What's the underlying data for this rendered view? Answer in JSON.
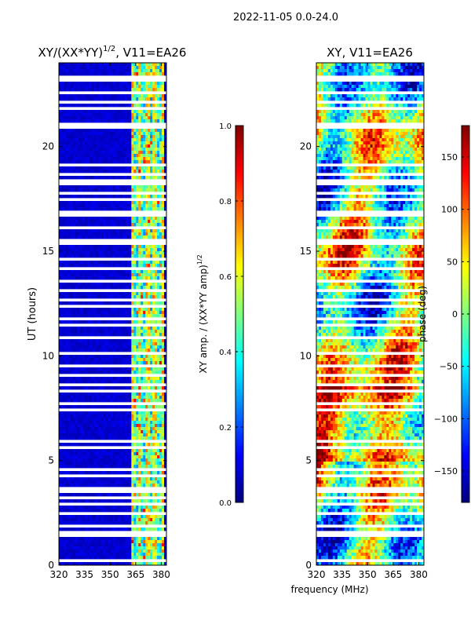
{
  "suptitle": "2022-11-05 0.0-24.0",
  "chart_data": [
    {
      "type": "heatmap",
      "title": "XY/(XX*YY)",
      "title_exp": "1/2",
      "title_tail": ", V11=EA26",
      "ylabel": "UT (hours)",
      "xlabel": "",
      "xlim": [
        320,
        383
      ],
      "ylim": [
        0,
        24
      ],
      "xticks": [
        "320",
        "335",
        "350",
        "365",
        "380"
      ],
      "xtick_values": [
        320,
        335,
        350,
        365,
        380
      ],
      "yticks": [
        "0",
        "5",
        "10",
        "15",
        "20"
      ],
      "ytick_values": [
        0,
        5,
        10,
        15,
        20
      ],
      "colormap": "jet",
      "colorbar": {
        "label": "XY amp. / (XX*YY amp)",
        "label_exp": "1/2",
        "range": [
          0.0,
          1.0
        ],
        "ticks": [
          "0.0",
          "0.2",
          "0.4",
          "0.6",
          "0.8",
          "1.0"
        ],
        "tick_values": [
          0.0,
          0.2,
          0.4,
          0.6,
          0.8,
          1.0
        ]
      },
      "flagged_hours": [
        0.3,
        0.6,
        1.4,
        1.6,
        1.9,
        2.5,
        2.9,
        3.3,
        3.5,
        3.7,
        4.2,
        4.6,
        5.6,
        5.9,
        6.9,
        7.4,
        7.8,
        8.3,
        8.6,
        9.1,
        9.6,
        10.1,
        10.9,
        11.4,
        11.8,
        12.3,
        12.7,
        13.2,
        13.6,
        14.2,
        14.6,
        15.4,
        15.6,
        16.1,
        16.8,
        17.5,
        17.8,
        18.3,
        18.7,
        19.1,
        20.9,
        21.1,
        21.9,
        22.1,
        22.6,
        23.1,
        23.3
      ],
      "bright_band_MHz": [
        362,
        381
      ]
    },
    {
      "type": "heatmap",
      "title": "XY, V11=EA26",
      "ylabel": "",
      "xlabel": "frequency (MHz)",
      "xlim": [
        320,
        383
      ],
      "ylim": [
        0,
        24
      ],
      "xticks": [
        "320",
        "335",
        "350",
        "365",
        "380"
      ],
      "xtick_values": [
        320,
        335,
        350,
        365,
        380
      ],
      "yticks": [
        "0",
        "5",
        "10",
        "15",
        "20"
      ],
      "ytick_values": [
        0,
        5,
        10,
        15,
        20
      ],
      "colormap": "jet",
      "colorbar": {
        "label": "phase (deg)",
        "range": [
          -180,
          180
        ],
        "ticks": [
          "−150",
          "−100",
          "−50",
          "0",
          "50",
          "100",
          "150"
        ],
        "tick_values": [
          -150,
          -100,
          -50,
          0,
          50,
          100,
          150
        ]
      },
      "flagged_hours": [
        0.3,
        0.6,
        1.4,
        1.6,
        1.9,
        2.5,
        2.9,
        3.3,
        3.5,
        3.7,
        4.2,
        4.6,
        5.6,
        5.9,
        6.9,
        7.4,
        7.8,
        8.3,
        8.6,
        9.1,
        9.6,
        10.1,
        10.9,
        11.4,
        11.8,
        12.3,
        12.7,
        13.2,
        13.6,
        14.2,
        14.6,
        15.4,
        15.6,
        16.1,
        16.8,
        17.5,
        17.8,
        18.3,
        18.7,
        19.1,
        20.9,
        21.1,
        21.9,
        22.1,
        22.6,
        23.1,
        23.3
      ]
    }
  ]
}
